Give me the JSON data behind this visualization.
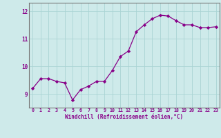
{
  "x": [
    0,
    1,
    2,
    3,
    4,
    5,
    6,
    7,
    8,
    9,
    10,
    11,
    12,
    13,
    14,
    15,
    16,
    17,
    18,
    19,
    20,
    21,
    22,
    23
  ],
  "y": [
    9.2,
    9.55,
    9.55,
    9.45,
    9.4,
    8.78,
    9.15,
    9.28,
    9.45,
    9.45,
    9.85,
    10.35,
    10.55,
    11.25,
    11.5,
    11.72,
    11.85,
    11.82,
    11.65,
    11.5,
    11.5,
    11.4,
    11.4,
    11.43
  ],
  "line_color": "#880088",
  "marker": "D",
  "marker_size": 2.2,
  "bg_color": "#ceeaea",
  "grid_color": "#aad4d4",
  "tick_color": "#880088",
  "label_color": "#880088",
  "xlabel": "Windchill (Refroidissement éolien,°C)",
  "xlim": [
    -0.5,
    23.5
  ],
  "ylim": [
    8.5,
    12.3
  ],
  "yticks": [
    9,
    10,
    11,
    12
  ],
  "xtick_labels": [
    "0",
    "1",
    "2",
    "3",
    "4",
    "5",
    "6",
    "7",
    "8",
    "9",
    "10",
    "11",
    "12",
    "13",
    "14",
    "15",
    "16",
    "17",
    "18",
    "19",
    "20",
    "21",
    "22",
    "23"
  ]
}
